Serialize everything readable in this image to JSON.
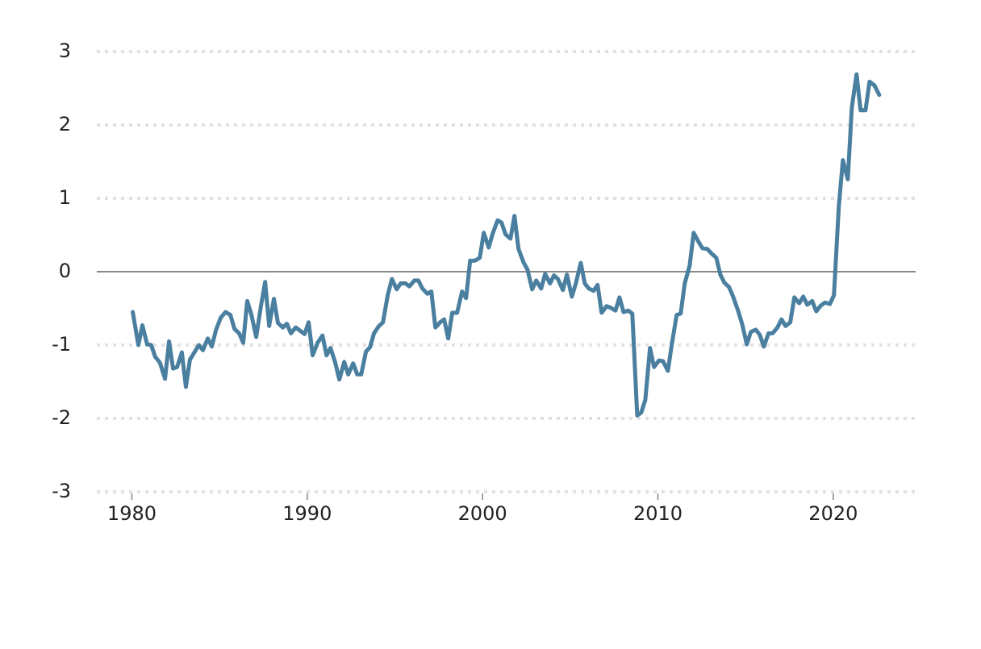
{
  "chart_data": {
    "type": "line",
    "color": "#4a7fa0",
    "grid": true,
    "xlim": [
      1978,
      2024.7
    ],
    "xticks": [
      1980,
      1990,
      2000,
      2010,
      2020
    ],
    "ylim": [
      -3,
      3
    ],
    "yticks": [
      -3,
      -2,
      -1,
      0,
      1,
      2,
      3
    ],
    "x": [
      1980.05,
      1980.37,
      1980.6,
      1980.87,
      1981.1,
      1981.33,
      1981.6,
      1981.89,
      1982.12,
      1982.35,
      1982.58,
      1982.85,
      1983.08,
      1983.31,
      1983.59,
      1983.82,
      1984.05,
      1984.33,
      1984.56,
      1984.79,
      1985.06,
      1985.34,
      1985.62,
      1985.85,
      1986.12,
      1986.35,
      1986.58,
      1986.81,
      1987.09,
      1987.36,
      1987.6,
      1987.83,
      1988.1,
      1988.33,
      1988.61,
      1988.84,
      1989.07,
      1989.34,
      1989.57,
      1989.85,
      1990.08,
      1990.31,
      1990.59,
      1990.87,
      1991.1,
      1991.33,
      1991.6,
      1991.83,
      1992.11,
      1992.34,
      1992.62,
      1992.85,
      1993.08,
      1993.35,
      1993.58,
      1993.81,
      1994.09,
      1994.32,
      1994.6,
      1994.83,
      1995.1,
      1995.33,
      1995.61,
      1995.83,
      1996.11,
      1996.34,
      1996.57,
      1996.85,
      1997.08,
      1997.31,
      1997.58,
      1997.81,
      1998.04,
      1998.27,
      1998.55,
      1998.83,
      1999.06,
      1999.29,
      1999.56,
      1999.84,
      2000.07,
      2000.35,
      2000.58,
      2000.86,
      2001.08,
      2001.31,
      2001.59,
      2001.82,
      2002.05,
      2002.33,
      2002.56,
      2002.83,
      2003.06,
      2003.34,
      2003.57,
      2003.85,
      2004.07,
      2004.3,
      2004.58,
      2004.81,
      2005.09,
      2005.32,
      2005.6,
      2005.83,
      2006.06,
      2006.33,
      2006.56,
      2006.79,
      2007.07,
      2007.3,
      2007.58,
      2007.81,
      2008.04,
      2008.31,
      2008.54,
      2008.82,
      2009.05,
      2009.28,
      2009.55,
      2009.78,
      2010.06,
      2010.29,
      2010.57,
      2010.8,
      2011.07,
      2011.3,
      2011.53,
      2011.81,
      2012.04,
      2012.31,
      2012.54,
      2012.82,
      2013.05,
      2013.33,
      2013.56,
      2013.79,
      2014.06,
      2014.29,
      2014.57,
      2014.8,
      2015.07,
      2015.3,
      2015.58,
      2015.81,
      2016.04,
      2016.31,
      2016.54,
      2016.82,
      2017.05,
      2017.28,
      2017.55,
      2017.78,
      2018.06,
      2018.29,
      2018.52,
      2018.8,
      2019.03,
      2019.3,
      2019.53,
      2019.81,
      2020.04,
      2020.32,
      2020.55,
      2020.83,
      2021.06,
      2021.33,
      2021.56,
      2021.84,
      2022.07,
      2022.35,
      2022.62
    ],
    "values": [
      -0.55,
      -1.0,
      -0.73,
      -0.99,
      -1.0,
      -1.16,
      -1.24,
      -1.46,
      -0.95,
      -1.32,
      -1.3,
      -1.1,
      -1.57,
      -1.2,
      -1.09,
      -1.0,
      -1.07,
      -0.91,
      -1.02,
      -0.8,
      -0.63,
      -0.55,
      -0.59,
      -0.78,
      -0.84,
      -0.97,
      -0.4,
      -0.58,
      -0.89,
      -0.47,
      -0.14,
      -0.74,
      -0.37,
      -0.7,
      -0.76,
      -0.71,
      -0.84,
      -0.76,
      -0.8,
      -0.85,
      -0.69,
      -1.14,
      -0.97,
      -0.87,
      -1.14,
      -1.04,
      -1.24,
      -1.47,
      -1.23,
      -1.4,
      -1.25,
      -1.4,
      -1.4,
      -1.09,
      -1.03,
      -0.84,
      -0.74,
      -0.69,
      -0.31,
      -0.1,
      -0.24,
      -0.16,
      -0.16,
      -0.2,
      -0.12,
      -0.12,
      -0.23,
      -0.3,
      -0.27,
      -0.76,
      -0.69,
      -0.65,
      -0.91,
      -0.56,
      -0.56,
      -0.27,
      -0.36,
      0.15,
      0.15,
      0.19,
      0.53,
      0.33,
      0.52,
      0.7,
      0.67,
      0.51,
      0.45,
      0.76,
      0.31,
      0.13,
      0.03,
      -0.24,
      -0.12,
      -0.23,
      -0.03,
      -0.16,
      -0.05,
      -0.1,
      -0.25,
      -0.04,
      -0.34,
      -0.16,
      0.12,
      -0.16,
      -0.23,
      -0.26,
      -0.18,
      -0.56,
      -0.47,
      -0.49,
      -0.53,
      -0.35,
      -0.55,
      -0.53,
      -0.57,
      -1.96,
      -1.92,
      -1.75,
      -1.04,
      -1.3,
      -1.21,
      -1.22,
      -1.35,
      -0.98,
      -0.59,
      -0.57,
      -0.16,
      0.08,
      0.53,
      0.41,
      0.32,
      0.31,
      0.25,
      0.19,
      -0.04,
      -0.15,
      -0.21,
      -0.34,
      -0.53,
      -0.71,
      -0.99,
      -0.82,
      -0.79,
      -0.86,
      -1.02,
      -0.84,
      -0.84,
      -0.76,
      -0.65,
      -0.74,
      -0.69,
      -0.35,
      -0.43,
      -0.34,
      -0.45,
      -0.4,
      -0.54,
      -0.46,
      -0.42,
      -0.44,
      -0.32,
      0.9,
      1.52,
      1.26,
      2.24,
      2.69,
      2.2,
      2.2,
      2.59,
      2.54,
      2.41
    ]
  }
}
